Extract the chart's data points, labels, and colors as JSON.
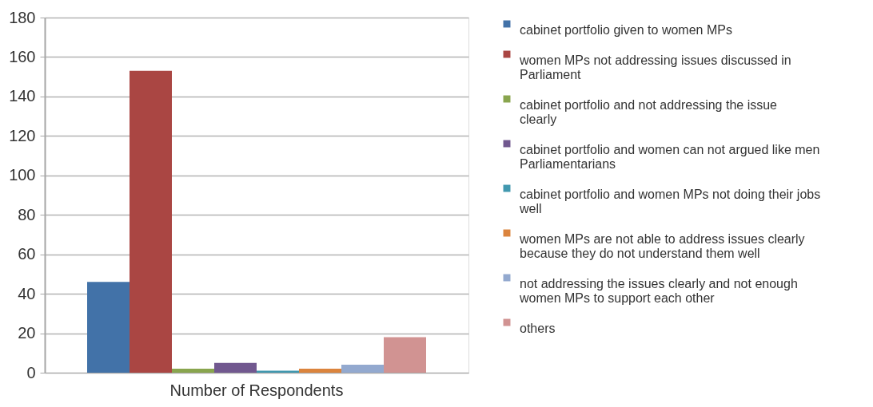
{
  "chart_data": {
    "type": "bar",
    "categories": [
      "Number of Respondents"
    ],
    "series": [
      {
        "name": "cabinet portfolio given to women MPs",
        "color": "#4272a8",
        "values": [
          46
        ]
      },
      {
        "name": "women MPs not addressing issues discussed in Parliament",
        "color": "#aa4643",
        "values": [
          153
        ]
      },
      {
        "name": "cabinet portfolio and not addressing the issue clearly",
        "color": "#89a54e",
        "values": [
          2
        ]
      },
      {
        "name": "cabinet portfolio and women can not argued like men Parliamentarians",
        "color": "#71588f",
        "values": [
          5
        ]
      },
      {
        "name": "cabinet portfolio and women MPs not doing their jobs well",
        "color": "#4198af",
        "values": [
          1
        ]
      },
      {
        "name": "women MPs are not able to address issues clearly because they do not understand them well",
        "color": "#db843d",
        "values": [
          2
        ]
      },
      {
        "name": "not addressing the issues clearly and not enough women MPs to support each other",
        "color": "#93a9cf",
        "values": [
          4
        ]
      },
      {
        "name": "others",
        "color": "#d19392",
        "values": [
          18
        ]
      }
    ],
    "ylim": [
      0,
      180
    ],
    "yticks": [
      0,
      20,
      40,
      60,
      80,
      100,
      120,
      140,
      160,
      180
    ],
    "grid": "y",
    "legend": "right"
  }
}
